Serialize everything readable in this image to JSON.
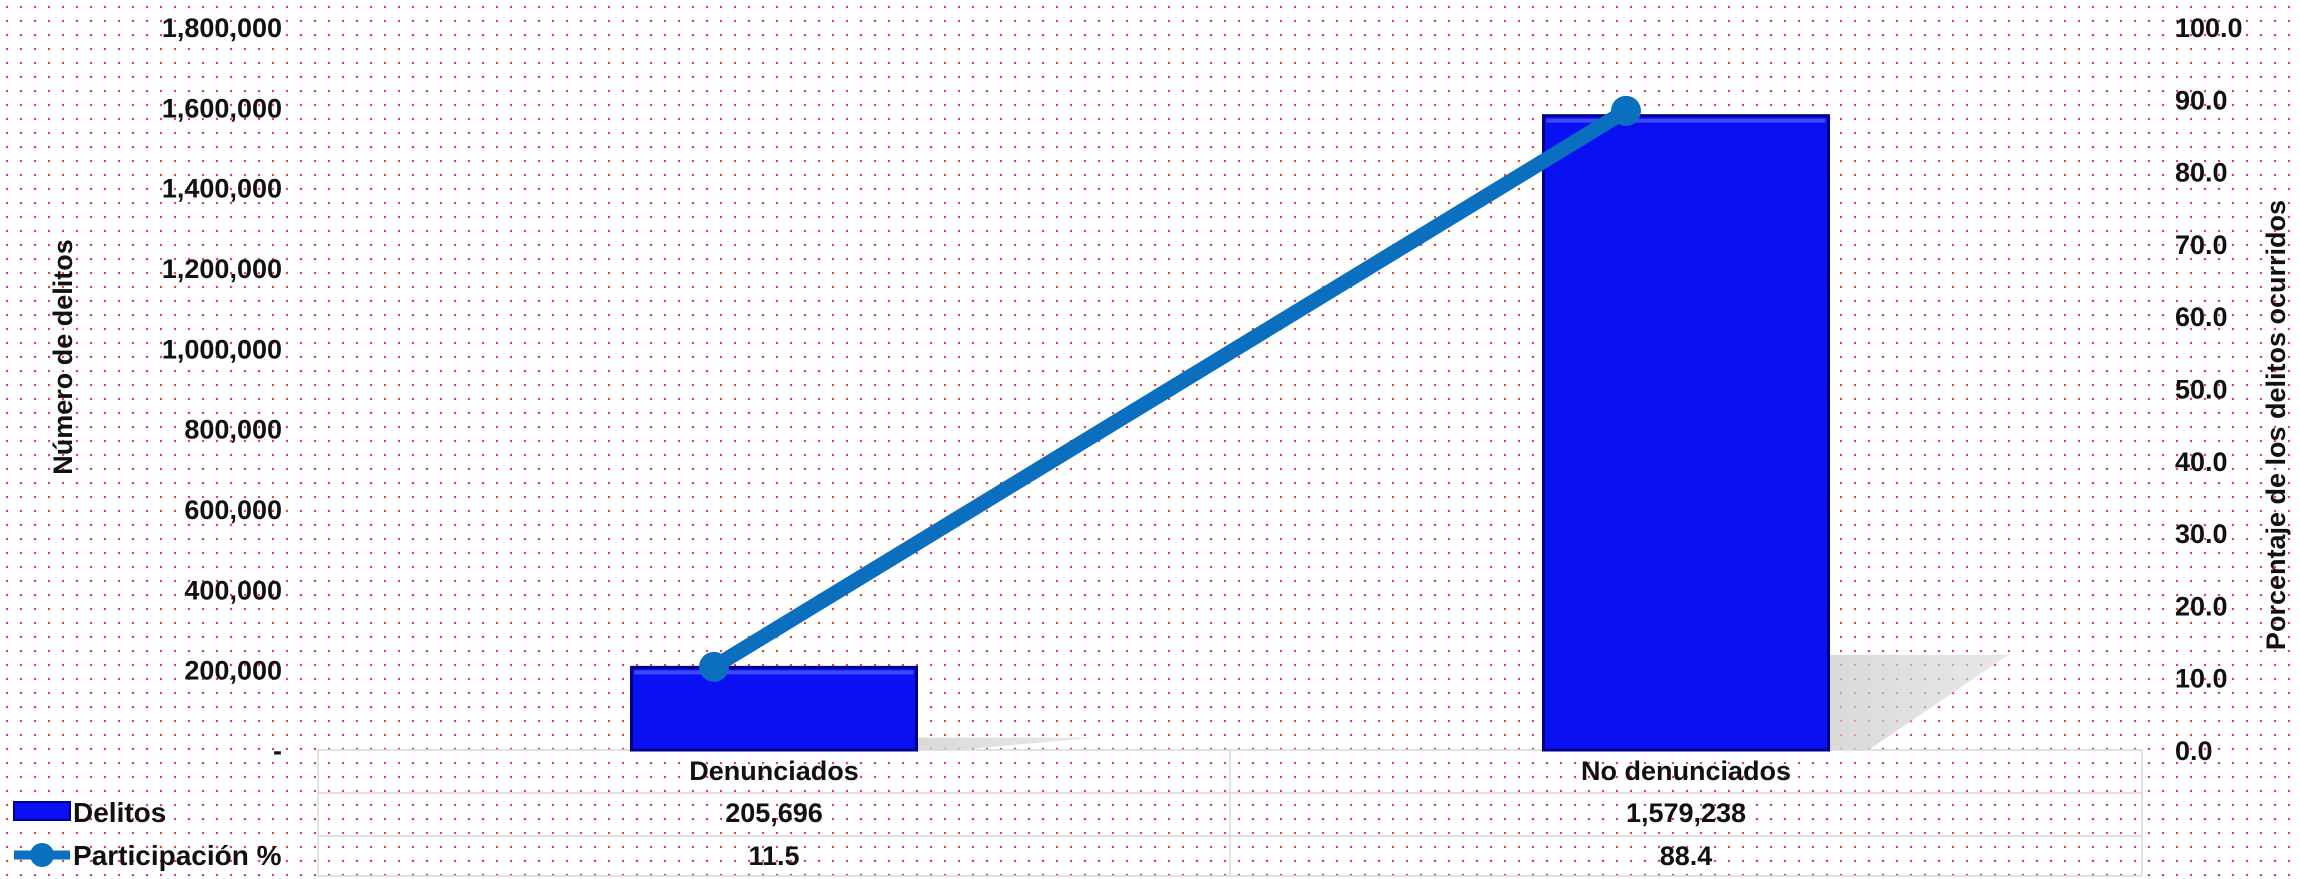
{
  "chart_data": {
    "type": "bar",
    "categories": [
      "Denunciados",
      "No denunciados"
    ],
    "series": [
      {
        "name": "Delitos",
        "kind": "bar",
        "axis": "left",
        "color": "#0a10f2",
        "values": [
          205696,
          1579238
        ],
        "display": [
          "205,696",
          "1,579,238"
        ]
      },
      {
        "name": "Participación %",
        "kind": "line",
        "axis": "right",
        "color": "#0a6fbf",
        "values": [
          11.5,
          88.4
        ],
        "display": [
          "11.5",
          "88.4"
        ]
      }
    ],
    "ylabel": "Número de delitos",
    "y2label": "Porcentaje de los delitos ocurridos",
    "ylim": [
      0,
      1800000
    ],
    "y2lim": [
      0,
      100
    ],
    "yticks": [
      "-",
      "200,000",
      "400,000",
      "600,000",
      "800,000",
      "1,000,000",
      "1,200,000",
      "1,400,000",
      "1,600,000",
      "1,800,000"
    ],
    "y2ticks": [
      "0.0",
      "10.0",
      "20.0",
      "30.0",
      "40.0",
      "50.0",
      "60.0",
      "70.0",
      "80.0",
      "90.0",
      "100.0"
    ],
    "legend": "data-table"
  }
}
